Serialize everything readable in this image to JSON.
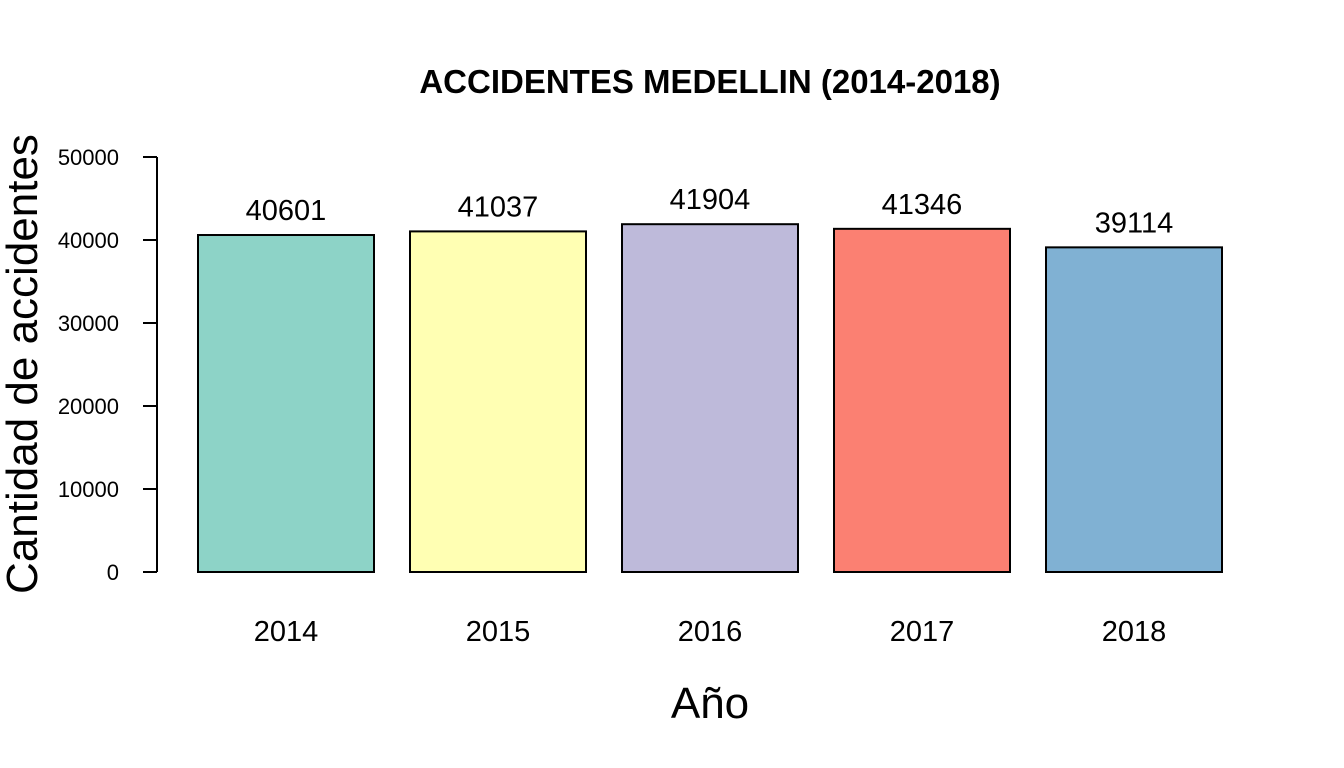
{
  "chart_data": {
    "type": "bar",
    "title": "ACCIDENTES MEDELLIN (2014-2018)",
    "xlabel": "Año",
    "ylabel": "Cantidad de accidentes",
    "categories": [
      "2014",
      "2015",
      "2016",
      "2017",
      "2018"
    ],
    "values": [
      40601,
      41037,
      41904,
      41346,
      39114
    ],
    "value_labels": [
      "40601",
      "41037",
      "41904",
      "41346",
      "39114"
    ],
    "colors": [
      "#8DD3C7",
      "#FFFFB3",
      "#BEBADA",
      "#FB8072",
      "#80B1D3"
    ],
    "ylim": [
      0,
      50000
    ],
    "yticks": [
      0,
      10000,
      20000,
      30000,
      40000,
      50000
    ],
    "ytick_labels": [
      "0",
      "10000",
      "20000",
      "30000",
      "40000",
      "50000"
    ],
    "grid": false,
    "legend": "none"
  }
}
